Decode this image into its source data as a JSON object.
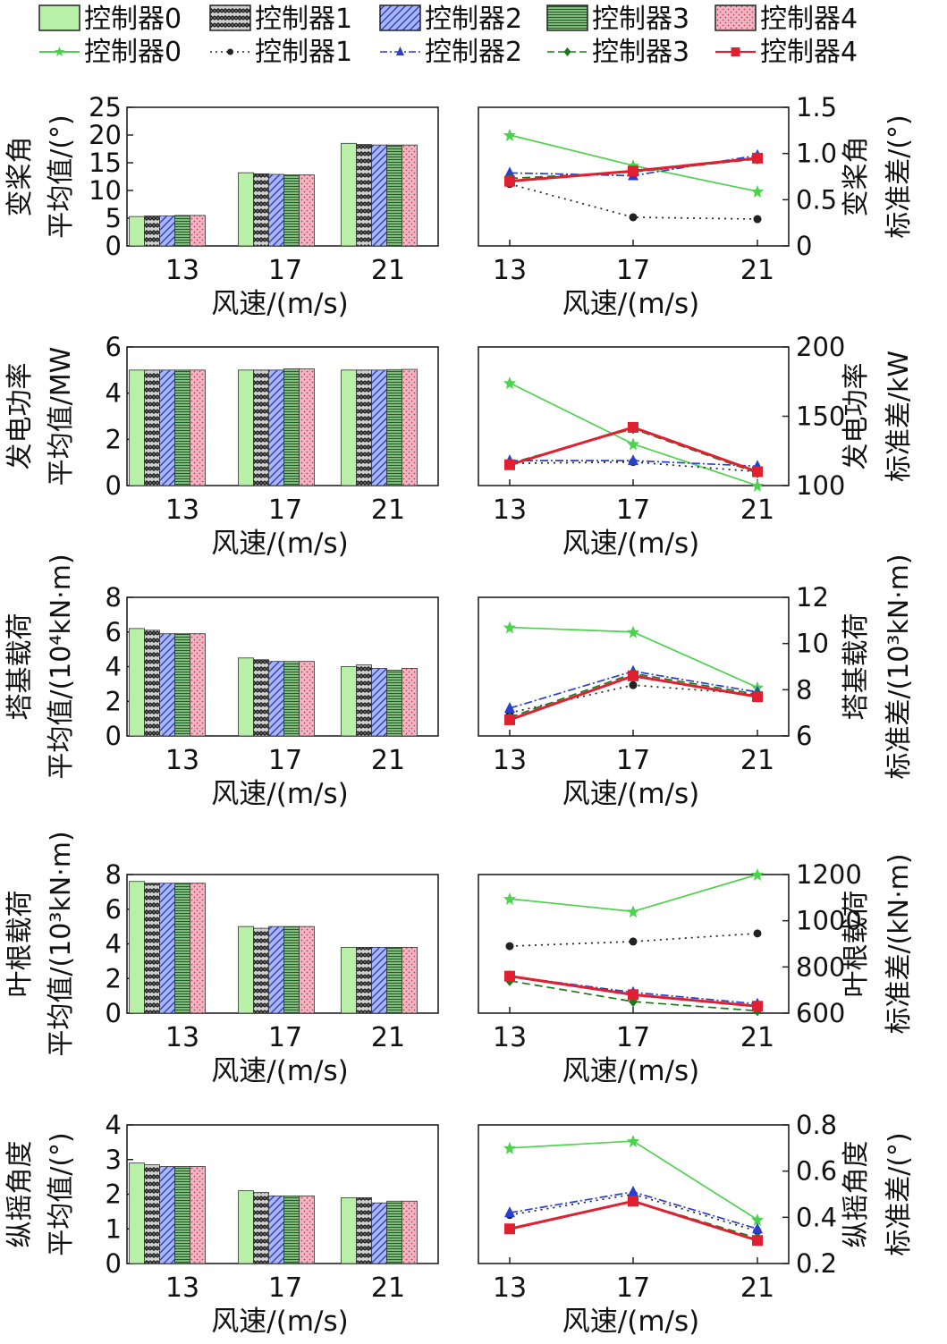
{
  "legend": {
    "bar_entries": [
      "控制器0",
      "控制器1",
      "控制器2",
      "控制器3",
      "控制器4"
    ],
    "line_entries": [
      "控制器0",
      "控制器1",
      "控制器2",
      "控制器3",
      "控制器4"
    ]
  },
  "styles": {
    "bar_colors": [
      "#b8f0a8",
      "#3a3a3a",
      "#6f7fe8",
      "#2f8a3a",
      "#e8a0b0"
    ],
    "line_colors": [
      "#4cd24c",
      "#222222",
      "#2a3fd0",
      "#1a7a1a",
      "#e02030"
    ]
  },
  "chart_data": [
    {
      "type": "bar",
      "ylabel": [
        "变桨角",
        "平均值/(°)"
      ],
      "xlabel": "风速/(m/s)",
      "categories": [
        "13",
        "17",
        "21"
      ],
      "ylim": [
        0,
        25
      ],
      "yticks": [
        "0",
        "5",
        "10",
        "15",
        "20",
        "25"
      ],
      "series": [
        {
          "name": "控制器0",
          "values": [
            5.3,
            13.2,
            18.5
          ]
        },
        {
          "name": "控制器1",
          "values": [
            5.4,
            13.0,
            18.3
          ]
        },
        {
          "name": "控制器2",
          "values": [
            5.4,
            12.9,
            18.2
          ]
        },
        {
          "name": "控制器3",
          "values": [
            5.5,
            12.8,
            18.2
          ]
        },
        {
          "name": "控制器4",
          "values": [
            5.5,
            12.8,
            18.2
          ]
        }
      ]
    },
    {
      "type": "line",
      "ylabel": [
        "变桨角",
        "标准差/(°)"
      ],
      "xlabel": "风速/(m/s)",
      "categories": [
        "13",
        "17",
        "21"
      ],
      "ylim": [
        0,
        1.5
      ],
      "yticks": [
        "0",
        "0.5",
        "1.0",
        "1.5"
      ],
      "series": [
        {
          "name": "控制器0",
          "values": [
            1.2,
            0.87,
            0.59
          ]
        },
        {
          "name": "控制器1",
          "values": [
            0.67,
            0.31,
            0.29
          ]
        },
        {
          "name": "控制器2",
          "values": [
            0.79,
            0.76,
            0.98
          ]
        },
        {
          "name": "控制器3",
          "values": [
            0.73,
            0.8,
            0.94
          ]
        },
        {
          "name": "控制器4",
          "values": [
            0.7,
            0.81,
            0.95
          ]
        }
      ]
    },
    {
      "type": "bar",
      "ylabel": [
        "发电功率",
        "平均值/MW"
      ],
      "xlabel": "风速/(m/s)",
      "categories": [
        "13",
        "17",
        "21"
      ],
      "ylim": [
        0,
        6
      ],
      "yticks": [
        "0",
        "2",
        "4",
        "6"
      ],
      "series": [
        {
          "name": "控制器0",
          "values": [
            5.0,
            5.0,
            5.0
          ]
        },
        {
          "name": "控制器1",
          "values": [
            5.0,
            5.0,
            5.0
          ]
        },
        {
          "name": "控制器2",
          "values": [
            5.0,
            5.0,
            5.0
          ]
        },
        {
          "name": "控制器3",
          "values": [
            5.0,
            5.05,
            5.02
          ]
        },
        {
          "name": "控制器4",
          "values": [
            5.0,
            5.05,
            5.03
          ]
        }
      ]
    },
    {
      "type": "line",
      "ylabel": [
        "发电功率",
        "标准差/kW"
      ],
      "xlabel": "风速/(m/s)",
      "categories": [
        "13",
        "17",
        "21"
      ],
      "ylim": [
        100,
        200
      ],
      "yticks": [
        "100",
        "150",
        "200"
      ],
      "series": [
        {
          "name": "控制器0",
          "values": [
            174,
            130,
            100
          ]
        },
        {
          "name": "控制器1",
          "values": [
            116,
            117,
            110
          ]
        },
        {
          "name": "控制器2",
          "values": [
            118,
            118,
            114
          ]
        },
        {
          "name": "控制器3",
          "values": [
            116,
            141,
            109
          ]
        },
        {
          "name": "控制器4",
          "values": [
            115,
            142,
            110
          ]
        }
      ]
    },
    {
      "type": "bar",
      "ylabel": [
        "塔基载荷",
        "平均值/(10⁴kN·m)"
      ],
      "xlabel": "风速/(m/s)",
      "categories": [
        "13",
        "17",
        "21"
      ],
      "ylim": [
        0,
        8
      ],
      "yticks": [
        "0",
        "2",
        "4",
        "6",
        "8"
      ],
      "series": [
        {
          "name": "控制器0",
          "values": [
            6.2,
            4.5,
            4.0
          ]
        },
        {
          "name": "控制器1",
          "values": [
            6.1,
            4.4,
            4.1
          ]
        },
        {
          "name": "控制器2",
          "values": [
            5.9,
            4.3,
            3.9
          ]
        },
        {
          "name": "控制器3",
          "values": [
            5.9,
            4.3,
            3.8
          ]
        },
        {
          "name": "控制器4",
          "values": [
            5.9,
            4.3,
            3.9
          ]
        }
      ]
    },
    {
      "type": "line",
      "ylabel": [
        "塔基载荷",
        "标准差/(10³kN·m)"
      ],
      "xlabel": "风速/(m/s)",
      "categories": [
        "13",
        "17",
        "21"
      ],
      "ylim": [
        6,
        12
      ],
      "yticks": [
        "6",
        "8",
        "10",
        "12"
      ],
      "series": [
        {
          "name": "控制器0",
          "values": [
            10.7,
            10.5,
            8.1
          ]
        },
        {
          "name": "控制器1",
          "values": [
            7.0,
            8.2,
            7.8
          ]
        },
        {
          "name": "控制器2",
          "values": [
            7.2,
            8.8,
            7.9
          ]
        },
        {
          "name": "控制器3",
          "values": [
            6.8,
            8.7,
            7.8
          ]
        },
        {
          "name": "控制器4",
          "values": [
            6.7,
            8.6,
            7.7
          ]
        }
      ]
    },
    {
      "type": "bar",
      "ylabel": [
        "叶根载荷",
        "平均值/(10³kN·m)"
      ],
      "xlabel": "风速/(m/s)",
      "categories": [
        "13",
        "17",
        "21"
      ],
      "ylim": [
        0,
        8
      ],
      "yticks": [
        "0",
        "2",
        "4",
        "6",
        "8"
      ],
      "series": [
        {
          "name": "控制器0",
          "values": [
            7.6,
            5.0,
            3.8
          ]
        },
        {
          "name": "控制器1",
          "values": [
            7.5,
            4.9,
            3.8
          ]
        },
        {
          "name": "控制器2",
          "values": [
            7.5,
            5.0,
            3.8
          ]
        },
        {
          "name": "控制器3",
          "values": [
            7.5,
            5.0,
            3.8
          ]
        },
        {
          "name": "控制器4",
          "values": [
            7.5,
            5.0,
            3.8
          ]
        }
      ]
    },
    {
      "type": "line",
      "ylabel": [
        "叶根载荷",
        "标准差/(kN·m)"
      ],
      "xlabel": "风速/(m/s)",
      "categories": [
        "13",
        "17",
        "21"
      ],
      "ylim": [
        600,
        1200
      ],
      "yticks": [
        "600",
        "800",
        "1000",
        "1200"
      ],
      "series": [
        {
          "name": "控制器0",
          "values": [
            1095,
            1040,
            1200
          ]
        },
        {
          "name": "控制器1",
          "values": [
            890,
            910,
            945
          ]
        },
        {
          "name": "控制器2",
          "values": [
            760,
            690,
            640
          ]
        },
        {
          "name": "控制器3",
          "values": [
            740,
            650,
            610
          ]
        },
        {
          "name": "控制器4",
          "values": [
            760,
            680,
            630
          ]
        }
      ]
    },
    {
      "type": "bar",
      "ylabel": [
        "纵摇角度",
        "平均值/(°)"
      ],
      "xlabel": "风速/(m/s)",
      "categories": [
        "13",
        "17",
        "21"
      ],
      "ylim": [
        0,
        4
      ],
      "yticks": [
        "0",
        "1",
        "2",
        "3",
        "4"
      ],
      "series": [
        {
          "name": "控制器0",
          "values": [
            2.9,
            2.1,
            1.9
          ]
        },
        {
          "name": "控制器1",
          "values": [
            2.85,
            2.05,
            1.9
          ]
        },
        {
          "name": "控制器2",
          "values": [
            2.8,
            1.95,
            1.75
          ]
        },
        {
          "name": "控制器3",
          "values": [
            2.8,
            1.95,
            1.8
          ]
        },
        {
          "name": "控制器4",
          "values": [
            2.8,
            1.95,
            1.8
          ]
        }
      ]
    },
    {
      "type": "line",
      "ylabel": [
        "纵摇角度",
        "标准差/(°)"
      ],
      "xlabel": "风速/(m/s)",
      "categories": [
        "13",
        "17",
        "21"
      ],
      "ylim": [
        0.2,
        0.8
      ],
      "yticks": [
        "0.2",
        "0.4",
        "0.6",
        "0.8"
      ],
      "series": [
        {
          "name": "控制器0",
          "values": [
            0.7,
            0.73,
            0.39
          ]
        },
        {
          "name": "控制器1",
          "values": [
            0.41,
            0.5,
            0.34
          ]
        },
        {
          "name": "控制器2",
          "values": [
            0.42,
            0.51,
            0.35
          ]
        },
        {
          "name": "控制器3",
          "values": [
            0.35,
            0.47,
            0.31
          ]
        },
        {
          "name": "控制器4",
          "values": [
            0.35,
            0.47,
            0.3
          ]
        }
      ]
    }
  ]
}
